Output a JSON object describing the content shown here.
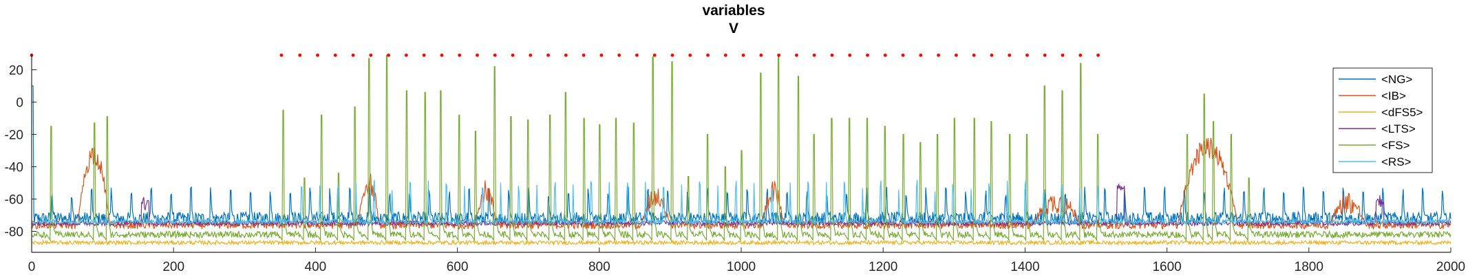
{
  "chart_data": {
    "type": "line",
    "title": "variables",
    "subtitle": "V",
    "xlabel": "",
    "ylabel": "",
    "xlim": [
      0,
      2000
    ],
    "ylim": [
      -93,
      30
    ],
    "xticks": [
      0,
      200,
      400,
      600,
      800,
      1000,
      1200,
      1400,
      1600,
      1800,
      2000
    ],
    "yticks": [
      20,
      0,
      -20,
      -40,
      -60,
      -80
    ],
    "grid": false,
    "legend_position": "top-right",
    "series": [
      {
        "name": "<NG>",
        "color": "#0072BD",
        "baseline": -72,
        "noise": 4,
        "spike_every": 28,
        "spike_height": 12,
        "start_spike": 10
      },
      {
        "name": "<IB>",
        "color": "#D95319",
        "baseline": -76,
        "noise": 2.5,
        "bursts": [
          [
            65,
            110,
            -32
          ],
          [
            460,
            490,
            -50
          ],
          [
            625,
            655,
            -55
          ],
          [
            860,
            900,
            -58
          ],
          [
            1030,
            1060,
            -55
          ],
          [
            1410,
            1480,
            -62
          ],
          [
            1615,
            1700,
            -28
          ],
          [
            1830,
            1880,
            -62
          ]
        ]
      },
      {
        "name": "<dFS5>",
        "color": "#EDB120",
        "baseline": -87,
        "noise": 1.2
      },
      {
        "name": "<LTS>",
        "color": "#7E2F8E",
        "baseline": -75,
        "noise": 1.5,
        "events": [
          [
            160,
            -62
          ],
          [
            1535,
            -52
          ],
          [
            1900,
            -62
          ]
        ]
      },
      {
        "name": "<FS>",
        "color": "#77AC30",
        "baseline": -82,
        "noise": 2,
        "spikes": [
          [
            27,
            -15
          ],
          [
            88,
            -13
          ],
          [
            106,
            -9
          ],
          [
            354,
            -5
          ],
          [
            384,
            -47
          ],
          [
            408,
            -8
          ],
          [
            432,
            -44
          ],
          [
            455,
            -3
          ],
          [
            475,
            27
          ],
          [
            500,
            29
          ],
          [
            528,
            7
          ],
          [
            554,
            6
          ],
          [
            576,
            7
          ],
          [
            602,
            -8
          ],
          [
            625,
            -18
          ],
          [
            652,
            22
          ],
          [
            675,
            -9
          ],
          [
            699,
            -11
          ],
          [
            730,
            -8
          ],
          [
            752,
            6
          ],
          [
            778,
            -10
          ],
          [
            800,
            -14
          ],
          [
            823,
            -10
          ],
          [
            848,
            -13
          ],
          [
            875,
            28
          ],
          [
            902,
            25
          ],
          [
            925,
            -46
          ],
          [
            952,
            -20
          ],
          [
            977,
            -40
          ],
          [
            1000,
            -30
          ],
          [
            1027,
            18
          ],
          [
            1052,
            29
          ],
          [
            1080,
            16
          ],
          [
            1102,
            -20
          ],
          [
            1127,
            -10
          ],
          [
            1152,
            -10
          ],
          [
            1177,
            -10
          ],
          [
            1202,
            -15
          ],
          [
            1228,
            -20
          ],
          [
            1252,
            -25
          ],
          [
            1276,
            -20
          ],
          [
            1300,
            -10
          ],
          [
            1328,
            -10
          ],
          [
            1352,
            -12
          ],
          [
            1378,
            -20
          ],
          [
            1402,
            -20
          ],
          [
            1427,
            10
          ],
          [
            1452,
            7
          ],
          [
            1478,
            24
          ],
          [
            1502,
            -20
          ],
          [
            1628,
            -20
          ],
          [
            1652,
            5
          ],
          [
            1665,
            -12
          ],
          [
            1690,
            -20
          ],
          [
            1715,
            -47
          ]
        ]
      },
      {
        "name": "<RS>",
        "color": "#4DBEEE",
        "baseline": -74,
        "noise": 1.5,
        "spike_every": 25.5,
        "spike_height": 18,
        "spike_start": 380,
        "spike_end": 1505
      }
    ],
    "markers": {
      "color": "#FF0000",
      "y": 29,
      "x": [
        0,
        352,
        378,
        403,
        428,
        453,
        478,
        503,
        528,
        553,
        578,
        603,
        628,
        653,
        678,
        703,
        728,
        753,
        778,
        803,
        828,
        853,
        878,
        903,
        928,
        953,
        978,
        1003,
        1028,
        1053,
        1078,
        1103,
        1128,
        1153,
        1178,
        1203,
        1228,
        1253,
        1278,
        1303,
        1328,
        1353,
        1378,
        1403,
        1428,
        1453,
        1478,
        1503
      ]
    }
  }
}
